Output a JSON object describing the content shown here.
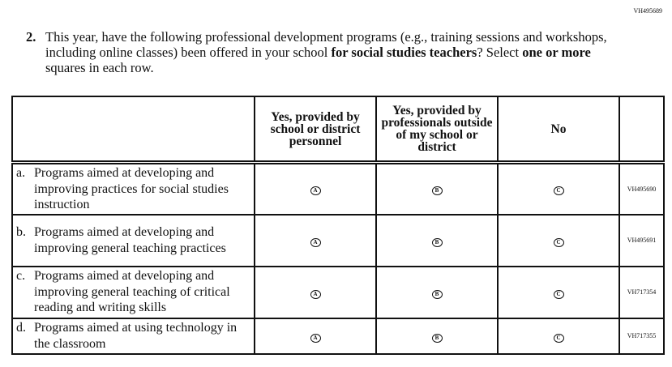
{
  "doc_id": "VH495689",
  "question": {
    "number": "2.",
    "text_parts": [
      "This year, have the following professional development programs (e.g., training sessions and workshops, including online classes) been offered in your school ",
      "for social studies teachers",
      "? Select ",
      "one or more",
      " squares in each row."
    ]
  },
  "columns": [
    "Yes, provided by school or district personnel",
    "Yes, provided by professionals outside of my school or district",
    "No"
  ],
  "options": [
    "A",
    "B",
    "C"
  ],
  "rows": [
    {
      "letter": "a.",
      "text": "Programs aimed at developing and improving practices for social studies instruction",
      "id": "VH495690"
    },
    {
      "letter": "b.",
      "text": "Programs aimed at developing and improving general teaching practices",
      "id": "VH495691"
    },
    {
      "letter": "c.",
      "text": "Programs aimed at developing and improving general teaching of critical reading and writing skills",
      "id": "VH717354"
    },
    {
      "letter": "d.",
      "text": "Programs aimed at using technology in the classroom",
      "id": "VH717355"
    }
  ]
}
